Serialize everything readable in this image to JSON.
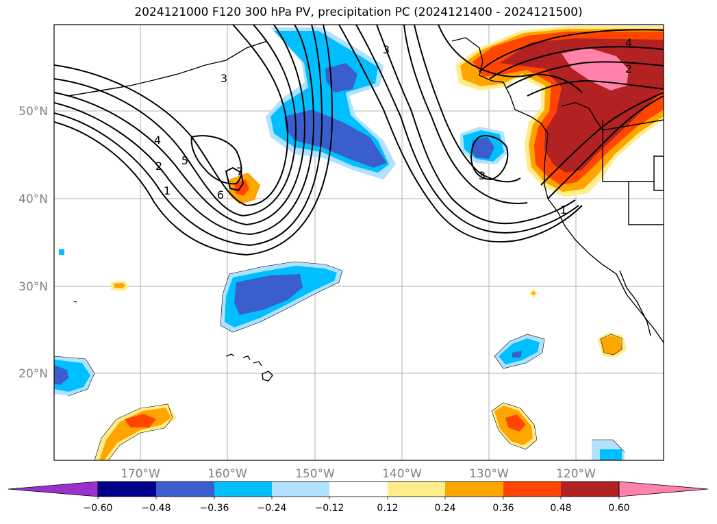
{
  "title": "2024121000 F120 300 hPa PV, precipitation PC (2024121400 - 2024121500)",
  "map": {
    "lon_ticks": [
      "170°W",
      "160°W",
      "150°W",
      "140°W",
      "130°W",
      "120°W"
    ],
    "lat_ticks": [
      "50°N",
      "40°N",
      "30°N",
      "20°N"
    ],
    "contour_labels": [
      "3",
      "3",
      "4",
      "2",
      "5",
      "1",
      "7",
      "6",
      "3",
      "1",
      "4",
      "2"
    ]
  },
  "colorbar": {
    "levels": [
      "−0.60",
      "−0.48",
      "−0.36",
      "−0.24",
      "−0.12",
      "0.12",
      "0.24",
      "0.36",
      "0.48",
      "0.60"
    ],
    "colors": [
      "#9932cc",
      "#00008b",
      "#3a5fcd",
      "#00bfff",
      "#b0e2ff",
      "#ffffff",
      "#ffec8b",
      "#ffa500",
      "#ff4500",
      "#b22222",
      "#ff82ab"
    ]
  }
}
